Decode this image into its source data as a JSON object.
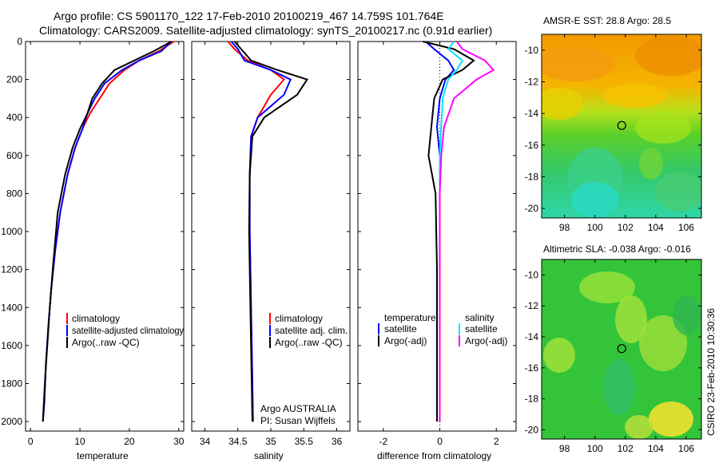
{
  "header": {
    "line1": "Argo profile: CS 5901170_122 17-Feb-2010 20100219_467 14.759S 101.764E",
    "line2": "Climatology: CARS2009. Satellite-adjusted climatology: synTS_20100217.nc (0.91d earlier)"
  },
  "side_label": "CSIRO 23-Feb-2010 10:30:36",
  "colors": {
    "climatology": "#ff0000",
    "satellite": "#0000ff",
    "argo": "#000000",
    "salinity_satellite": "#00e5ff",
    "salinity_argo": "#ff00ff",
    "marker": "#000000"
  },
  "chart_data": [
    {
      "type": "line",
      "id": "temperature",
      "xlabel": "temperature",
      "ylabel": "",
      "xlim": [
        -1,
        31
      ],
      "ylim": [
        2050,
        0
      ],
      "xticks": [
        0,
        10,
        20,
        30
      ],
      "yticks": [
        0,
        200,
        400,
        600,
        800,
        1000,
        1200,
        1400,
        1600,
        1800,
        2000
      ],
      "legend": [
        "climatology",
        "satellite-adjusted climatology",
        "Argo(..raw -QC)"
      ],
      "series": [
        {
          "name": "climatology",
          "color": "#ff0000",
          "x": [
            29,
            26,
            22,
            19,
            16,
            14,
            12,
            10.5,
            9,
            7.5,
            6,
            5,
            4.2,
            3.6,
            3.1,
            2.8,
            2.5
          ],
          "y": [
            0,
            50,
            100,
            150,
            220,
            300,
            380,
            460,
            560,
            700,
            900,
            1100,
            1300,
            1500,
            1700,
            1900,
            2000
          ]
        },
        {
          "name": "satellite-adjusted climatology",
          "color": "#0000ff",
          "x": [
            28.5,
            26.5,
            22,
            18.5,
            15,
            13,
            11.5,
            10.5,
            9,
            7.5,
            6,
            5,
            4.2,
            3.6,
            3.1,
            2.8,
            2.5
          ],
          "y": [
            0,
            50,
            100,
            150,
            220,
            300,
            380,
            460,
            560,
            700,
            900,
            1100,
            1300,
            1500,
            1700,
            1900,
            2000
          ]
        },
        {
          "name": "Argo(..raw -QC)",
          "color": "#000000",
          "x": [
            28.5,
            25,
            21,
            17,
            14.5,
            12.5,
            11.5,
            10,
            8.5,
            7,
            5.5,
            4.5,
            3.9,
            3.4,
            2.9,
            2.5
          ],
          "y": [
            0,
            50,
            100,
            150,
            220,
            300,
            380,
            460,
            560,
            700,
            900,
            1200,
            1400,
            1600,
            1800,
            2000
          ]
        }
      ]
    },
    {
      "type": "line",
      "id": "salinity",
      "xlabel": "salinity",
      "xlim": [
        33.8,
        36.2
      ],
      "ylim": [
        2050,
        0
      ],
      "xticks": [
        34,
        34.5,
        35,
        35.5,
        36
      ],
      "legend": [
        "climatology",
        "satellite adj. clim.",
        "Argo(..raw -QC)"
      ],
      "annotation": [
        "Argo AUSTRALIA",
        "PI: Susan Wijffels"
      ],
      "series": [
        {
          "name": "climatology",
          "color": "#ff0000",
          "x": [
            34.35,
            34.45,
            34.65,
            35.0,
            35.2,
            35.0,
            34.8,
            34.7,
            34.68,
            34.68,
            34.7,
            34.72,
            34.73
          ],
          "y": [
            0,
            40,
            100,
            150,
            200,
            280,
            400,
            500,
            700,
            1000,
            1400,
            1800,
            2000
          ]
        },
        {
          "name": "satellite adj. clim.",
          "color": "#0000ff",
          "x": [
            34.4,
            34.5,
            34.6,
            35.0,
            35.3,
            35.2,
            34.8,
            34.7,
            34.68,
            34.68,
            34.7,
            34.72,
            34.73
          ],
          "y": [
            0,
            40,
            100,
            150,
            200,
            280,
            400,
            500,
            700,
            1000,
            1400,
            1800,
            2000
          ]
        },
        {
          "name": "Argo(..raw -QC)",
          "color": "#000000",
          "x": [
            34.45,
            34.55,
            34.7,
            35.1,
            35.55,
            35.4,
            34.9,
            34.72,
            34.68,
            34.67,
            34.69,
            34.71,
            34.72
          ],
          "y": [
            0,
            40,
            100,
            150,
            200,
            280,
            400,
            500,
            700,
            1000,
            1400,
            1800,
            2000
          ]
        }
      ]
    },
    {
      "type": "line",
      "id": "difference",
      "xlabel": "difference from climatology",
      "xlim": [
        -2.9,
        2.7
      ],
      "ylim": [
        2050,
        0
      ],
      "xticks": [
        -2,
        0,
        2
      ],
      "legend_left_title": "temperature",
      "legend_right_title": "salinity",
      "legend_left": [
        "satellite",
        "Argo(-adj)"
      ],
      "legend_right": [
        "satellite",
        "Argo(-adj)"
      ],
      "series": [
        {
          "name": "temperature satellite",
          "color": "#0000ff",
          "x": [
            -0.5,
            -0.2,
            0.3,
            0.5,
            0.2,
            0.0,
            -0.1,
            0.0,
            0.0,
            0.0,
            0.0,
            0.0
          ],
          "y": [
            0,
            40,
            100,
            150,
            200,
            300,
            450,
            600,
            800,
            1200,
            1600,
            2000
          ]
        },
        {
          "name": "temperature Argo(-adj)",
          "color": "#000000",
          "x": [
            -0.6,
            0.5,
            1.2,
            0.8,
            0.1,
            -0.2,
            -0.3,
            -0.4,
            -0.15,
            -0.1,
            -0.1,
            -0.1
          ],
          "y": [
            0,
            40,
            100,
            150,
            200,
            300,
            450,
            600,
            800,
            1200,
            1600,
            2000
          ]
        },
        {
          "name": "salinity satellite",
          "color": "#00e5ff",
          "x": [
            0.5,
            0.3,
            0.8,
            0.6,
            0.3,
            0.1,
            0.05,
            0.0,
            0.0,
            0.0,
            0.0,
            0.0
          ],
          "y": [
            0,
            40,
            100,
            150,
            200,
            300,
            450,
            600,
            800,
            1200,
            1600,
            2000
          ]
        },
        {
          "name": "salinity Argo(-adj)",
          "color": "#ff00ff",
          "x": [
            0.6,
            0.8,
            1.6,
            1.9,
            1.3,
            0.5,
            0.15,
            0.05,
            0.0,
            0.0,
            0.0,
            0.0
          ],
          "y": [
            0,
            40,
            100,
            150,
            200,
            300,
            450,
            600,
            800,
            1200,
            1600,
            2000
          ]
        }
      ]
    },
    {
      "type": "heatmap",
      "id": "sst",
      "title": "AMSR-E SST: 28.8 Argo: 28.5",
      "xlim": [
        96.5,
        107
      ],
      "ylim": [
        -20.6,
        -9
      ],
      "xticks": [
        98,
        100,
        102,
        104,
        106
      ],
      "yticks": [
        -10,
        -12,
        -14,
        -16,
        -18,
        -20
      ],
      "argo_position": [
        101.764,
        -14.759
      ]
    },
    {
      "type": "heatmap",
      "id": "sla",
      "title": "Altimetric SLA: -0.038 Argo: -0.016",
      "xlim": [
        96.5,
        107
      ],
      "ylim": [
        -20.6,
        -9
      ],
      "xticks": [
        98,
        100,
        102,
        104,
        106
      ],
      "yticks": [
        -10,
        -12,
        -14,
        -16,
        -18,
        -20
      ],
      "argo_position": [
        101.764,
        -14.759
      ]
    }
  ]
}
